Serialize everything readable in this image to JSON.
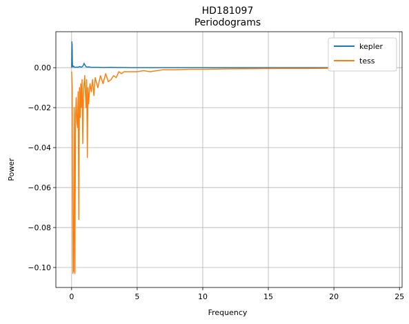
{
  "chart_data": {
    "type": "line",
    "title": "HD181097",
    "subtitle": "Periodograms",
    "xlabel": "Frequency",
    "ylabel": "Power",
    "xlim": [
      -1.2,
      25.2
    ],
    "ylim": [
      -0.11,
      0.018
    ],
    "xticks": [
      0,
      5,
      10,
      15,
      20,
      25
    ],
    "yticks": [
      0.0,
      -0.02,
      -0.04,
      -0.06,
      -0.08,
      -0.1
    ],
    "xtick_labels": [
      "0",
      "5",
      "10",
      "15",
      "20",
      "25"
    ],
    "ytick_labels": [
      "0.00",
      "−0.02",
      "−0.04",
      "−0.06",
      "−0.08",
      "−0.10"
    ],
    "grid": true,
    "legend_position": "top-right",
    "series": [
      {
        "name": "kepler",
        "color": "#1f77b4",
        "x": [
          0.0,
          0.01,
          0.02,
          0.03,
          0.04,
          0.05,
          0.06,
          0.07,
          0.08,
          0.1,
          0.15,
          0.2,
          0.3,
          0.4,
          0.5,
          0.6,
          0.7,
          0.8,
          0.9,
          0.95,
          1.0,
          1.1,
          1.2,
          1.3,
          1.5,
          2.0,
          2.5,
          3.0,
          3.5,
          4.0,
          4.5,
          5.0,
          10.0,
          15.0,
          20.0,
          24.0
        ],
        "y": [
          0.0,
          0.006,
          0.013,
          0.004,
          0.012,
          0.008,
          0.003,
          0.001,
          0.0005,
          0.0004,
          0.0008,
          0.0003,
          0.0002,
          0.0003,
          0.0002,
          0.0006,
          0.0003,
          0.0004,
          0.0012,
          0.0022,
          0.0015,
          0.0005,
          0.0003,
          0.0004,
          0.0002,
          0.0002,
          0.0001,
          0.0002,
          0.0001,
          0.0001,
          0.0,
          0.0,
          0.0,
          0.0,
          0.0,
          0.0
        ]
      },
      {
        "name": "tess",
        "color": "#ff7f0e",
        "x": [
          0.0,
          0.05,
          0.1,
          0.12,
          0.15,
          0.2,
          0.25,
          0.3,
          0.35,
          0.4,
          0.45,
          0.5,
          0.55,
          0.6,
          0.65,
          0.7,
          0.75,
          0.8,
          0.85,
          0.9,
          0.95,
          1.0,
          1.05,
          1.1,
          1.15,
          1.2,
          1.25,
          1.3,
          1.4,
          1.5,
          1.6,
          1.7,
          1.8,
          2.0,
          2.2,
          2.4,
          2.6,
          2.8,
          3.0,
          3.2,
          3.4,
          3.6,
          3.8,
          4.0,
          4.5,
          5.0,
          5.5,
          6.0,
          6.5,
          7.0,
          8.0,
          9.0,
          10.0,
          12.0,
          14.0,
          16.0,
          18.0,
          20.0,
          22.0,
          24.0
        ],
        "y": [
          -0.002,
          -0.01,
          -0.103,
          -0.098,
          -0.102,
          -0.02,
          -0.103,
          -0.025,
          -0.015,
          -0.027,
          -0.03,
          -0.012,
          -0.076,
          -0.01,
          -0.025,
          -0.008,
          -0.02,
          -0.006,
          -0.038,
          -0.015,
          -0.008,
          -0.004,
          -0.012,
          -0.02,
          -0.006,
          -0.045,
          -0.01,
          -0.018,
          -0.008,
          -0.012,
          -0.006,
          -0.014,
          -0.005,
          -0.01,
          -0.004,
          -0.008,
          -0.003,
          -0.007,
          -0.006,
          -0.004,
          -0.005,
          -0.002,
          -0.003,
          -0.002,
          -0.002,
          -0.002,
          -0.0015,
          -0.002,
          -0.0015,
          -0.001,
          -0.001,
          -0.0008,
          -0.0008,
          -0.0006,
          -0.0005,
          -0.0004,
          -0.0004,
          -0.0003,
          -0.0003,
          -0.0002
        ]
      }
    ]
  }
}
